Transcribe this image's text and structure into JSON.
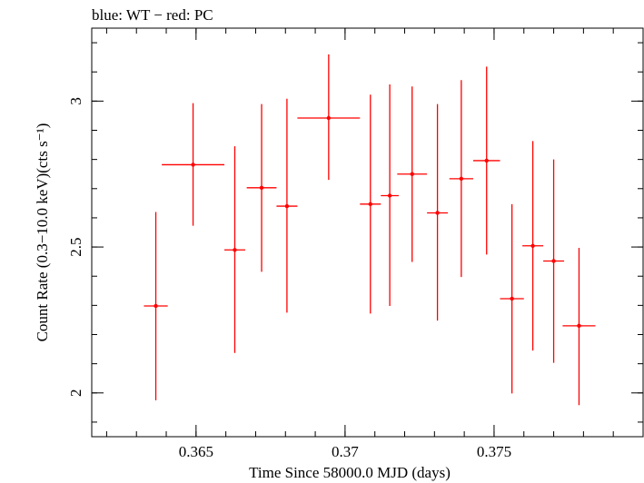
{
  "chart_data": {
    "type": "scatter",
    "title": "blue: WT − red: PC",
    "xlabel": "Time Since 58000.0 MJD (days)",
    "ylabel": "Count Rate (0.3−10.0 keV)(cts s⁻¹)",
    "xlim": [
      0.3615,
      0.38
    ],
    "ylim": [
      1.85,
      3.25
    ],
    "x_ticks": [
      {
        "value": 0.365,
        "label": "0.365"
      },
      {
        "value": 0.37,
        "label": "0.37"
      },
      {
        "value": 0.375,
        "label": "0.375"
      }
    ],
    "y_ticks": [
      {
        "value": 2.0,
        "label": "2"
      },
      {
        "value": 2.5,
        "label": "2.5"
      },
      {
        "value": 3.0,
        "label": "3"
      }
    ],
    "x_minor_step": 0.001,
    "y_minor_step": 0.1,
    "grid": false,
    "series": [
      {
        "color": "#ff0000",
        "points": [
          {
            "x": 0.36365,
            "xerr": 0.0004,
            "y": 2.298,
            "ylo": 1.975,
            "yhi": 2.62
          },
          {
            "x": 0.3649,
            "xerr": 0.00105,
            "y": 2.782,
            "ylo": 2.573,
            "yhi": 2.993
          },
          {
            "x": 0.3663,
            "xerr": 0.00035,
            "y": 2.49,
            "ylo": 2.137,
            "yhi": 2.845
          },
          {
            "x": 0.3672,
            "xerr": 0.0005,
            "y": 2.703,
            "ylo": 2.415,
            "yhi": 2.99
          },
          {
            "x": 0.36805,
            "xerr": 0.00035,
            "y": 2.64,
            "ylo": 2.275,
            "yhi": 3.008
          },
          {
            "x": 0.36945,
            "xerr": 0.00105,
            "y": 2.942,
            "ylo": 2.73,
            "yhi": 3.16
          },
          {
            "x": 0.37085,
            "xerr": 0.00035,
            "y": 2.647,
            "ylo": 2.272,
            "yhi": 3.022
          },
          {
            "x": 0.3715,
            "xerr": 0.0003,
            "y": 2.676,
            "ylo": 2.298,
            "yhi": 3.057
          },
          {
            "x": 0.37225,
            "xerr": 0.0005,
            "y": 2.75,
            "ylo": 2.449,
            "yhi": 3.05
          },
          {
            "x": 0.3731,
            "xerr": 0.00035,
            "y": 2.617,
            "ylo": 2.248,
            "yhi": 2.99
          },
          {
            "x": 0.3739,
            "xerr": 0.0004,
            "y": 2.734,
            "ylo": 2.397,
            "yhi": 3.072
          },
          {
            "x": 0.37475,
            "xerr": 0.00045,
            "y": 2.796,
            "ylo": 2.474,
            "yhi": 3.118
          },
          {
            "x": 0.3756,
            "xerr": 0.0004,
            "y": 2.323,
            "ylo": 1.998,
            "yhi": 2.647
          },
          {
            "x": 0.3763,
            "xerr": 0.00035,
            "y": 2.504,
            "ylo": 2.145,
            "yhi": 2.863
          },
          {
            "x": 0.377,
            "xerr": 0.00035,
            "y": 2.452,
            "ylo": 2.103,
            "yhi": 2.8
          },
          {
            "x": 0.37785,
            "xerr": 0.00055,
            "y": 2.23,
            "ylo": 1.958,
            "yhi": 2.497
          }
        ]
      }
    ]
  }
}
